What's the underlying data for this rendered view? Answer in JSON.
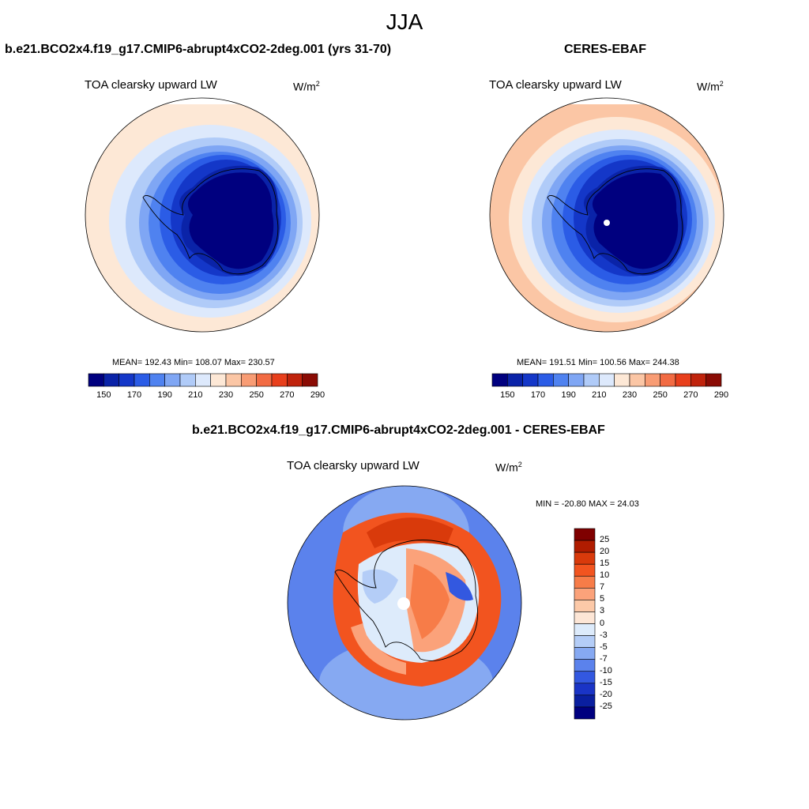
{
  "season": "JJA",
  "units_base": "W/m",
  "units_exp": "2",
  "panels": [
    {
      "title": "b.e21.BCO2x4.f19_g17.CMIP6-abrupt4xCO2-2deg.001 (yrs 31-70)",
      "variable": "TOA clearsky upward LW",
      "stats": "MEAN= 192.43  Min= 108.07  Max= 230.57"
    },
    {
      "title": "CERES-EBAF",
      "variable": "TOA clearsky upward LW",
      "stats": "MEAN= 191.51  Min= 100.56  Max= 244.38"
    },
    {
      "title": "b.e21.BCO2x4.f19_g17.CMIP6-abrupt4xCO2-2deg.001 - CERES-EBAF",
      "variable": "TOA clearsky upward LW",
      "stats": "MIN = -20.80 MAX =  24.03"
    }
  ],
  "colorbar_abs": {
    "ticks": [
      "150",
      "170",
      "190",
      "210",
      "230",
      "250",
      "270",
      "290"
    ],
    "colors": [
      "#00007f",
      "#0a23a8",
      "#1437c8",
      "#2b5ce6",
      "#4f82f0",
      "#7fa6f4",
      "#b0cbf8",
      "#dde9fc",
      "#fde8d6",
      "#fbc6a5",
      "#f89c74",
      "#f26b43",
      "#e83f1c",
      "#c0230c",
      "#8a0b04"
    ]
  },
  "colorbar_diff": {
    "ticks": [
      "25",
      "20",
      "15",
      "10",
      "7",
      "5",
      "3",
      "0",
      "-3",
      "-5",
      "-7",
      "-10",
      "-15",
      "-20",
      "-25"
    ],
    "colors": [
      "#7f0000",
      "#b01c00",
      "#d93a0b",
      "#f2541f",
      "#f77c48",
      "#fba27a",
      "#fcc9a8",
      "#fde6d6",
      "#ddebfb",
      "#b4cdf7",
      "#86a9f2",
      "#5b82ec",
      "#3358e0",
      "#1a34c6",
      "#0a1fa0",
      "#00007f"
    ]
  },
  "map_colors": {
    "land_abs": "#00007f",
    "model_rings": [
      "#fde8d6",
      "#dde9fc",
      "#b0cbf8",
      "#7fa6f4",
      "#4f82f0",
      "#2b5ce6",
      "#1437c8",
      "#0a23a8"
    ],
    "obs_rings": [
      "#fbc6a5",
      "#fde8d6",
      "#dde9fc",
      "#b0cbf8",
      "#7fa6f4",
      "#4f82f0",
      "#2b5ce6",
      "#1437c8",
      "#0a23a8"
    ],
    "diff_ocean": "#5b82ec",
    "diff_band": "#f2541f",
    "diff_land": "#ddebfb",
    "diff_east": "#3358e0"
  }
}
